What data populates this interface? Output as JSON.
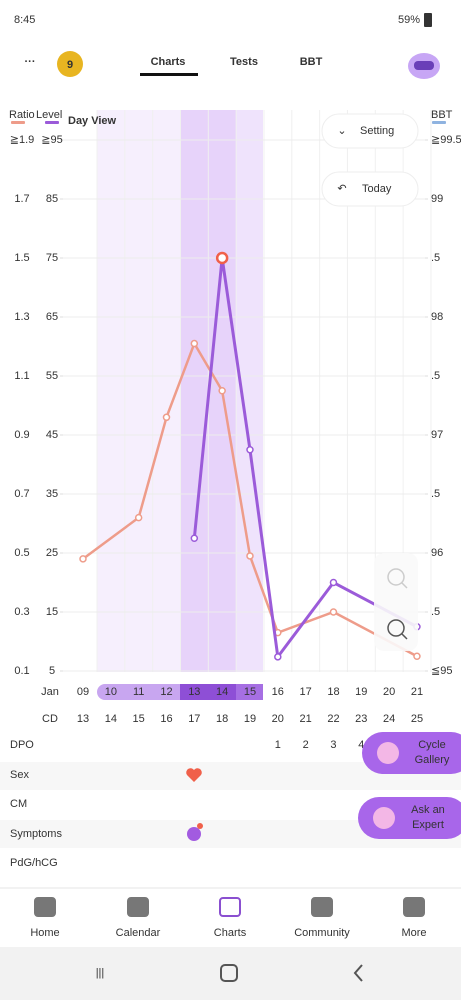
{
  "status_bar": {
    "time": "8:45",
    "battery": "59%"
  },
  "header": {
    "menu": "···",
    "badge": "9",
    "tabs": [
      "Charts",
      "Tests",
      "BBT"
    ]
  },
  "chart": {
    "ratio_label": "Ratio",
    "level_label": "Level",
    "bbt_label": "BBT",
    "day_view": "Day View",
    "ratio_lim": [
      0.1,
      1.9
    ],
    "level_lim": [
      5,
      95
    ],
    "bbt_lim": [
      95,
      99.5
    ],
    "ratio_ticks": [
      {
        "value": 1.9,
        "label": "≧1.9"
      },
      1.7,
      1.5,
      1.3,
      1.1,
      0.9,
      0.7,
      0.5,
      0.3,
      0.1
    ],
    "level_ticks": [
      {
        "value": 95,
        "label": "≧95"
      },
      85,
      75,
      65,
      55,
      45,
      35,
      25,
      15,
      5
    ],
    "bbt_ticks": [
      {
        "value": 99.5,
        "label": "≧99.5"
      },
      99,
      {
        "value": 98.5,
        "label": ".5"
      },
      98,
      {
        "value": 97.5,
        "label": ".5"
      },
      97,
      {
        "value": 96.5,
        "label": ".5"
      },
      96,
      {
        "value": 95.5,
        "label": ".5"
      },
      {
        "value": 95,
        "label": "≦95"
      }
    ],
    "ratio_color": "#ee9c8a",
    "level_color": "#9b5bd9",
    "ratio": {
      "x": [
        9,
        11,
        12,
        13,
        14,
        15,
        16,
        18,
        21
      ],
      "values": [
        0.48,
        0.62,
        0.96,
        1.21,
        1.05,
        0.49,
        0.23,
        0.3,
        0.15
      ]
    },
    "level": {
      "x": [
        13,
        14,
        15,
        16,
        18,
        21
      ],
      "values": [
        27.5,
        75,
        42.5,
        7.4,
        20,
        12.5
      ]
    }
  },
  "setting": "Setting",
  "today": "Today",
  "rows": {
    "month": "Jan",
    "days": [
      "09",
      "10",
      "11",
      "12",
      "13",
      "14",
      "15",
      "16",
      "17",
      "18",
      "19",
      "20",
      "21"
    ],
    "cd_label": "CD",
    "cd": [
      13,
      14,
      15,
      16,
      17,
      18,
      19,
      20,
      21,
      22,
      23,
      24,
      25
    ],
    "dpo_label": "DPO",
    "dpo": [
      1,
      2,
      3,
      4
    ],
    "sex_label": "Sex",
    "cm_label": "CM",
    "symptoms_label": "Symptoms",
    "pdg_label": "PdG/hCG"
  },
  "cycle_gallery": [
    "Cycle",
    "Gallery"
  ],
  "ask_expert": [
    "Ask an",
    "Expert"
  ],
  "nav": [
    "Home",
    "Calendar",
    "Charts",
    "Community",
    "More"
  ]
}
